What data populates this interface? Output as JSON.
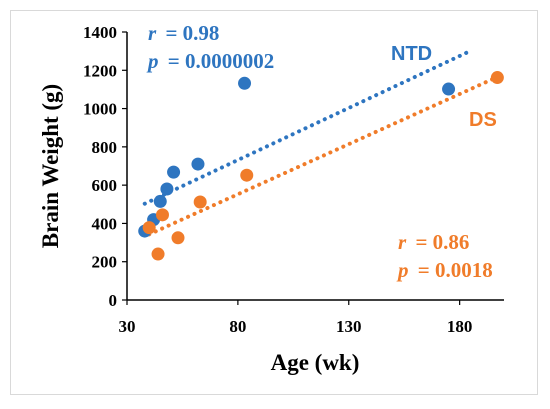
{
  "chart_data": {
    "type": "scatter",
    "xlabel": "Age (wk)",
    "ylabel": "Brain Weight (g)",
    "xlim": [
      30,
      200
    ],
    "ylim": [
      0,
      1400
    ],
    "x_ticks": [
      30,
      80,
      130,
      180
    ],
    "y_ticks": [
      0,
      200,
      400,
      600,
      800,
      1000,
      1200,
      1400
    ],
    "series": [
      {
        "name": "NTD",
        "color": "#2e75c0",
        "points": [
          [
            38,
            360
          ],
          [
            42,
            420
          ],
          [
            45,
            515
          ],
          [
            48,
            580
          ],
          [
            51,
            668
          ],
          [
            62,
            710
          ],
          [
            83,
            1132
          ],
          [
            175,
            1102
          ]
        ],
        "trend": {
          "x": [
            38,
            185
          ],
          "y": [
            503,
            1302
          ]
        },
        "r_label": "r",
        "r_value": "= 0.98",
        "p_label": "p",
        "p_value": "= 0.0000002"
      },
      {
        "name": "DS",
        "color": "#f07c2a",
        "points": [
          [
            40,
            378
          ],
          [
            44,
            240
          ],
          [
            46,
            445
          ],
          [
            53,
            325
          ],
          [
            63,
            512
          ],
          [
            84,
            652
          ],
          [
            197,
            1162
          ]
        ],
        "trend": {
          "x": [
            40,
            197
          ],
          "y": [
            343,
            1165
          ]
        },
        "r_label": "r",
        "r_value": "= 0.86",
        "p_label": "p",
        "p_value": "= 0.0018"
      }
    ],
    "grid": false,
    "legend": "none"
  }
}
